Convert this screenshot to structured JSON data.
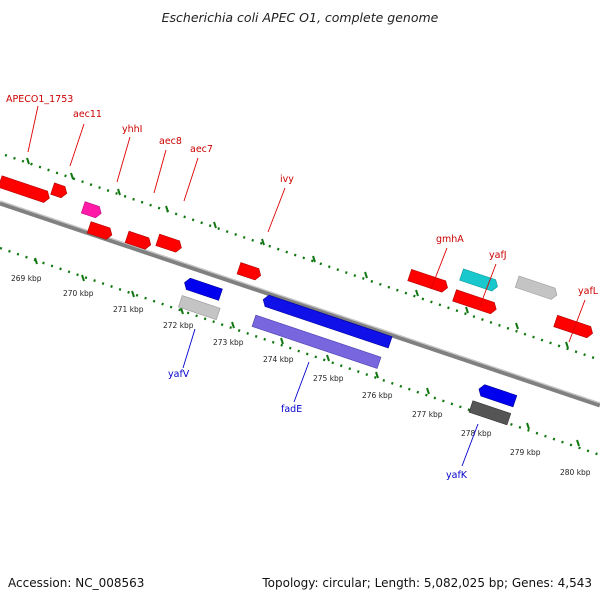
{
  "title": "Escherichia coli APEC O1, complete genome",
  "footer": {
    "accession": "Accession: NC_008563",
    "summary": "Topology: circular; Length: 5,082,025 bp; Genes: 4,543"
  },
  "colors": {
    "forward_label": "#cc0000",
    "reverse_label": "#0000cc",
    "backbone": "#808080",
    "ticks": "#117711"
  },
  "ticks": [
    "269 kbp",
    "270 kbp",
    "271 kbp",
    "272 kbp",
    "273 kbp",
    "274 kbp",
    "275 kbp",
    "276 kbp",
    "277 kbp",
    "278 kbp",
    "279 kbp",
    "280 kbp"
  ],
  "genes_forward": [
    "APECO1_1753",
    "aec11",
    "yhhI",
    "aec8",
    "aec7",
    "ivy",
    "gmhA",
    "yafJ",
    "yafL"
  ],
  "genes_reverse": [
    "yafV",
    "fadE",
    "yafK"
  ]
}
